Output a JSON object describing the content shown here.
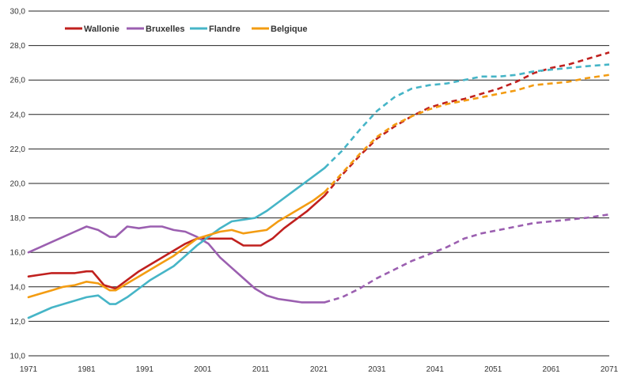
{
  "chart_data": {
    "type": "line",
    "title": "",
    "xlabel": "",
    "ylabel": "",
    "xlim": [
      1971,
      2071
    ],
    "ylim": [
      10,
      30
    ],
    "x_ticks": [
      1971,
      1981,
      1991,
      2001,
      2011,
      2021,
      2031,
      2041,
      2051,
      2061,
      2071
    ],
    "x_tick_labels": [
      "1971",
      "1981",
      "1991",
      "2001",
      "2011",
      "2021",
      "2031",
      "2041",
      "2051",
      "2061",
      "2071"
    ],
    "y_ticks": [
      10,
      12,
      14,
      16,
      18,
      20,
      22,
      24,
      26,
      28,
      30
    ],
    "y_tick_labels": [
      "10,0",
      "12,0",
      "14,0",
      "16,0",
      "18,0",
      "20,0",
      "22,0",
      "24,0",
      "26,0",
      "28,0",
      "30,0"
    ],
    "grid": "horizontal",
    "legend_position": "top-left",
    "observed_until": 2022,
    "series": [
      {
        "name": "Wallonie",
        "color": "#c0201e",
        "points": [
          [
            1971,
            14.6
          ],
          [
            1973,
            14.7
          ],
          [
            1975,
            14.8
          ],
          [
            1977,
            14.8
          ],
          [
            1979,
            14.8
          ],
          [
            1981,
            14.9
          ],
          [
            1982,
            14.9
          ],
          [
            1983,
            14.5
          ],
          [
            1984,
            14.1
          ],
          [
            1986,
            13.9
          ],
          [
            1988,
            14.4
          ],
          [
            1990,
            14.9
          ],
          [
            1992,
            15.3
          ],
          [
            1994,
            15.7
          ],
          [
            1996,
            16.1
          ],
          [
            1998,
            16.5
          ],
          [
            2000,
            16.8
          ],
          [
            2002,
            16.8
          ],
          [
            2004,
            16.8
          ],
          [
            2006,
            16.8
          ],
          [
            2008,
            16.4
          ],
          [
            2010,
            16.4
          ],
          [
            2011,
            16.4
          ],
          [
            2013,
            16.8
          ],
          [
            2015,
            17.4
          ],
          [
            2017,
            17.9
          ],
          [
            2019,
            18.4
          ],
          [
            2021,
            19.0
          ],
          [
            2022,
            19.3
          ],
          [
            2025,
            20.5
          ],
          [
            2028,
            21.6
          ],
          [
            2031,
            22.6
          ],
          [
            2034,
            23.3
          ],
          [
            2037,
            23.9
          ],
          [
            2040,
            24.4
          ],
          [
            2043,
            24.7
          ],
          [
            2046,
            24.9
          ],
          [
            2049,
            25.2
          ],
          [
            2052,
            25.5
          ],
          [
            2055,
            25.9
          ],
          [
            2058,
            26.4
          ],
          [
            2061,
            26.7
          ],
          [
            2064,
            26.9
          ],
          [
            2067,
            27.2
          ],
          [
            2071,
            27.6
          ]
        ]
      },
      {
        "name": "Bruxelles",
        "color": "#9b5fb0",
        "points": [
          [
            1971,
            16.0
          ],
          [
            1973,
            16.3
          ],
          [
            1975,
            16.6
          ],
          [
            1977,
            16.9
          ],
          [
            1979,
            17.2
          ],
          [
            1981,
            17.5
          ],
          [
            1983,
            17.3
          ],
          [
            1985,
            16.9
          ],
          [
            1986,
            16.9
          ],
          [
            1988,
            17.5
          ],
          [
            1990,
            17.4
          ],
          [
            1992,
            17.5
          ],
          [
            1994,
            17.5
          ],
          [
            1996,
            17.3
          ],
          [
            1998,
            17.2
          ],
          [
            2000,
            16.9
          ],
          [
            2002,
            16.5
          ],
          [
            2004,
            15.7
          ],
          [
            2006,
            15.1
          ],
          [
            2008,
            14.5
          ],
          [
            2010,
            13.9
          ],
          [
            2012,
            13.5
          ],
          [
            2014,
            13.3
          ],
          [
            2016,
            13.2
          ],
          [
            2018,
            13.1
          ],
          [
            2020,
            13.1
          ],
          [
            2022,
            13.1
          ],
          [
            2025,
            13.4
          ],
          [
            2028,
            13.9
          ],
          [
            2031,
            14.5
          ],
          [
            2034,
            15.0
          ],
          [
            2037,
            15.5
          ],
          [
            2040,
            15.9
          ],
          [
            2043,
            16.3
          ],
          [
            2046,
            16.8
          ],
          [
            2049,
            17.1
          ],
          [
            2052,
            17.3
          ],
          [
            2055,
            17.5
          ],
          [
            2058,
            17.7
          ],
          [
            2061,
            17.8
          ],
          [
            2064,
            17.9
          ],
          [
            2067,
            18.0
          ],
          [
            2071,
            18.2
          ]
        ]
      },
      {
        "name": "Flandre",
        "color": "#46b5c7",
        "points": [
          [
            1971,
            12.2
          ],
          [
            1973,
            12.5
          ],
          [
            1975,
            12.8
          ],
          [
            1977,
            13.0
          ],
          [
            1979,
            13.2
          ],
          [
            1981,
            13.4
          ],
          [
            1983,
            13.5
          ],
          [
            1985,
            13.0
          ],
          [
            1986,
            13.0
          ],
          [
            1988,
            13.4
          ],
          [
            1990,
            13.9
          ],
          [
            1992,
            14.4
          ],
          [
            1994,
            14.8
          ],
          [
            1996,
            15.2
          ],
          [
            1998,
            15.8
          ],
          [
            2000,
            16.4
          ],
          [
            2002,
            16.9
          ],
          [
            2004,
            17.4
          ],
          [
            2006,
            17.8
          ],
          [
            2008,
            17.9
          ],
          [
            2010,
            18.0
          ],
          [
            2012,
            18.4
          ],
          [
            2014,
            18.9
          ],
          [
            2016,
            19.4
          ],
          [
            2018,
            19.9
          ],
          [
            2020,
            20.4
          ],
          [
            2022,
            20.9
          ],
          [
            2025,
            21.9
          ],
          [
            2028,
            23.1
          ],
          [
            2031,
            24.2
          ],
          [
            2034,
            25.0
          ],
          [
            2037,
            25.5
          ],
          [
            2040,
            25.7
          ],
          [
            2043,
            25.8
          ],
          [
            2046,
            26.0
          ],
          [
            2049,
            26.2
          ],
          [
            2052,
            26.2
          ],
          [
            2055,
            26.3
          ],
          [
            2058,
            26.5
          ],
          [
            2061,
            26.6
          ],
          [
            2064,
            26.7
          ],
          [
            2067,
            26.8
          ],
          [
            2071,
            26.9
          ]
        ]
      },
      {
        "name": "Belgique",
        "color": "#f39c12",
        "points": [
          [
            1971,
            13.4
          ],
          [
            1973,
            13.6
          ],
          [
            1975,
            13.8
          ],
          [
            1977,
            14.0
          ],
          [
            1979,
            14.1
          ],
          [
            1981,
            14.3
          ],
          [
            1983,
            14.2
          ],
          [
            1985,
            13.8
          ],
          [
            1986,
            13.8
          ],
          [
            1988,
            14.2
          ],
          [
            1990,
            14.6
          ],
          [
            1992,
            15.0
          ],
          [
            1994,
            15.4
          ],
          [
            1996,
            15.8
          ],
          [
            1998,
            16.3
          ],
          [
            2000,
            16.8
          ],
          [
            2002,
            17.0
          ],
          [
            2004,
            17.2
          ],
          [
            2006,
            17.3
          ],
          [
            2008,
            17.1
          ],
          [
            2010,
            17.2
          ],
          [
            2012,
            17.3
          ],
          [
            2014,
            17.8
          ],
          [
            2016,
            18.2
          ],
          [
            2018,
            18.6
          ],
          [
            2020,
            19.0
          ],
          [
            2022,
            19.5
          ],
          [
            2025,
            20.6
          ],
          [
            2028,
            21.7
          ],
          [
            2031,
            22.7
          ],
          [
            2034,
            23.4
          ],
          [
            2037,
            23.9
          ],
          [
            2040,
            24.3
          ],
          [
            2043,
            24.6
          ],
          [
            2046,
            24.8
          ],
          [
            2049,
            25.0
          ],
          [
            2052,
            25.2
          ],
          [
            2055,
            25.4
          ],
          [
            2058,
            25.7
          ],
          [
            2061,
            25.8
          ],
          [
            2064,
            25.9
          ],
          [
            2067,
            26.1
          ],
          [
            2071,
            26.3
          ]
        ]
      }
    ]
  }
}
